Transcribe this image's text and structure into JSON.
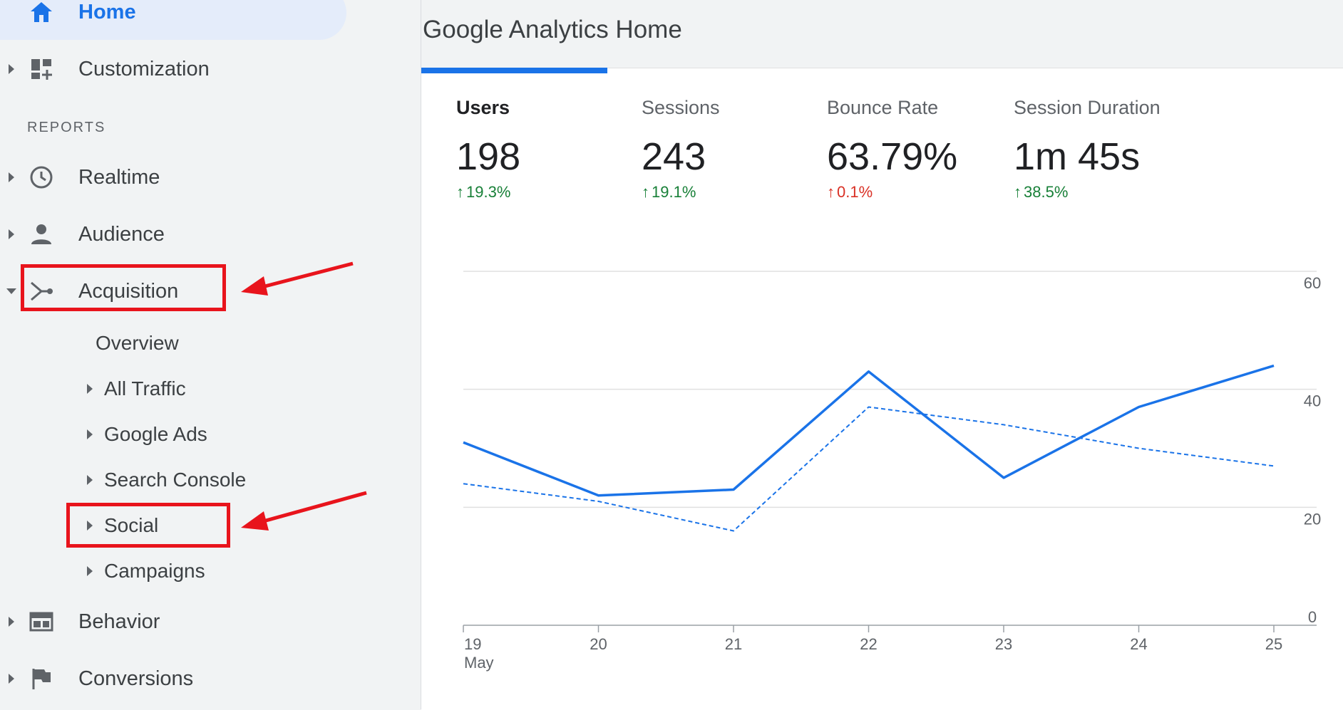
{
  "sidebar": {
    "home": {
      "label": "Home",
      "icon": "home-icon"
    },
    "customization": {
      "label": "Customization",
      "icon": "customization-icon"
    },
    "section_label": "REPORTS",
    "realtime": {
      "label": "Realtime",
      "icon": "clock-icon"
    },
    "audience": {
      "label": "Audience",
      "icon": "person-icon"
    },
    "acquisition": {
      "label": "Acquisition",
      "icon": "acquisition-icon",
      "children": {
        "overview": "Overview",
        "all_traffic": "All Traffic",
        "google_ads": "Google Ads",
        "search_console": "Search Console",
        "social": "Social",
        "campaigns": "Campaigns"
      }
    },
    "behavior": {
      "label": "Behavior",
      "icon": "behavior-icon"
    },
    "conversions": {
      "label": "Conversions",
      "icon": "flag-icon"
    }
  },
  "main": {
    "title": "Google Analytics Home",
    "metrics": [
      {
        "label": "Users",
        "value": "198",
        "change": "19.3%",
        "direction": "up",
        "color": "#188038"
      },
      {
        "label": "Sessions",
        "value": "243",
        "change": "19.1%",
        "direction": "up",
        "color": "#188038"
      },
      {
        "label": "Bounce Rate",
        "value": "63.79%",
        "change": "0.1%",
        "direction": "up",
        "color": "#d93025"
      },
      {
        "label": "Session Duration",
        "value": "1m 45s",
        "change": "38.5%",
        "direction": "up",
        "color": "#188038"
      }
    ]
  },
  "colors": {
    "accent": "#1a73e8",
    "annotation": "#e8141c"
  },
  "chart_data": {
    "type": "line",
    "x": [
      "19",
      "20",
      "21",
      "22",
      "23",
      "24",
      "25"
    ],
    "x_sublabel": "May",
    "y_ticks": [
      "0",
      "20",
      "40",
      "60"
    ],
    "ylim": [
      0,
      60
    ],
    "series": [
      {
        "values": [
          31,
          22,
          23,
          43,
          25,
          37,
          44
        ],
        "style": "solid",
        "color": "#1a73e8"
      },
      {
        "values": [
          24,
          21,
          16,
          37,
          34,
          30,
          27
        ],
        "style": "dashed",
        "color": "#1a73e8"
      }
    ],
    "grid": true
  }
}
